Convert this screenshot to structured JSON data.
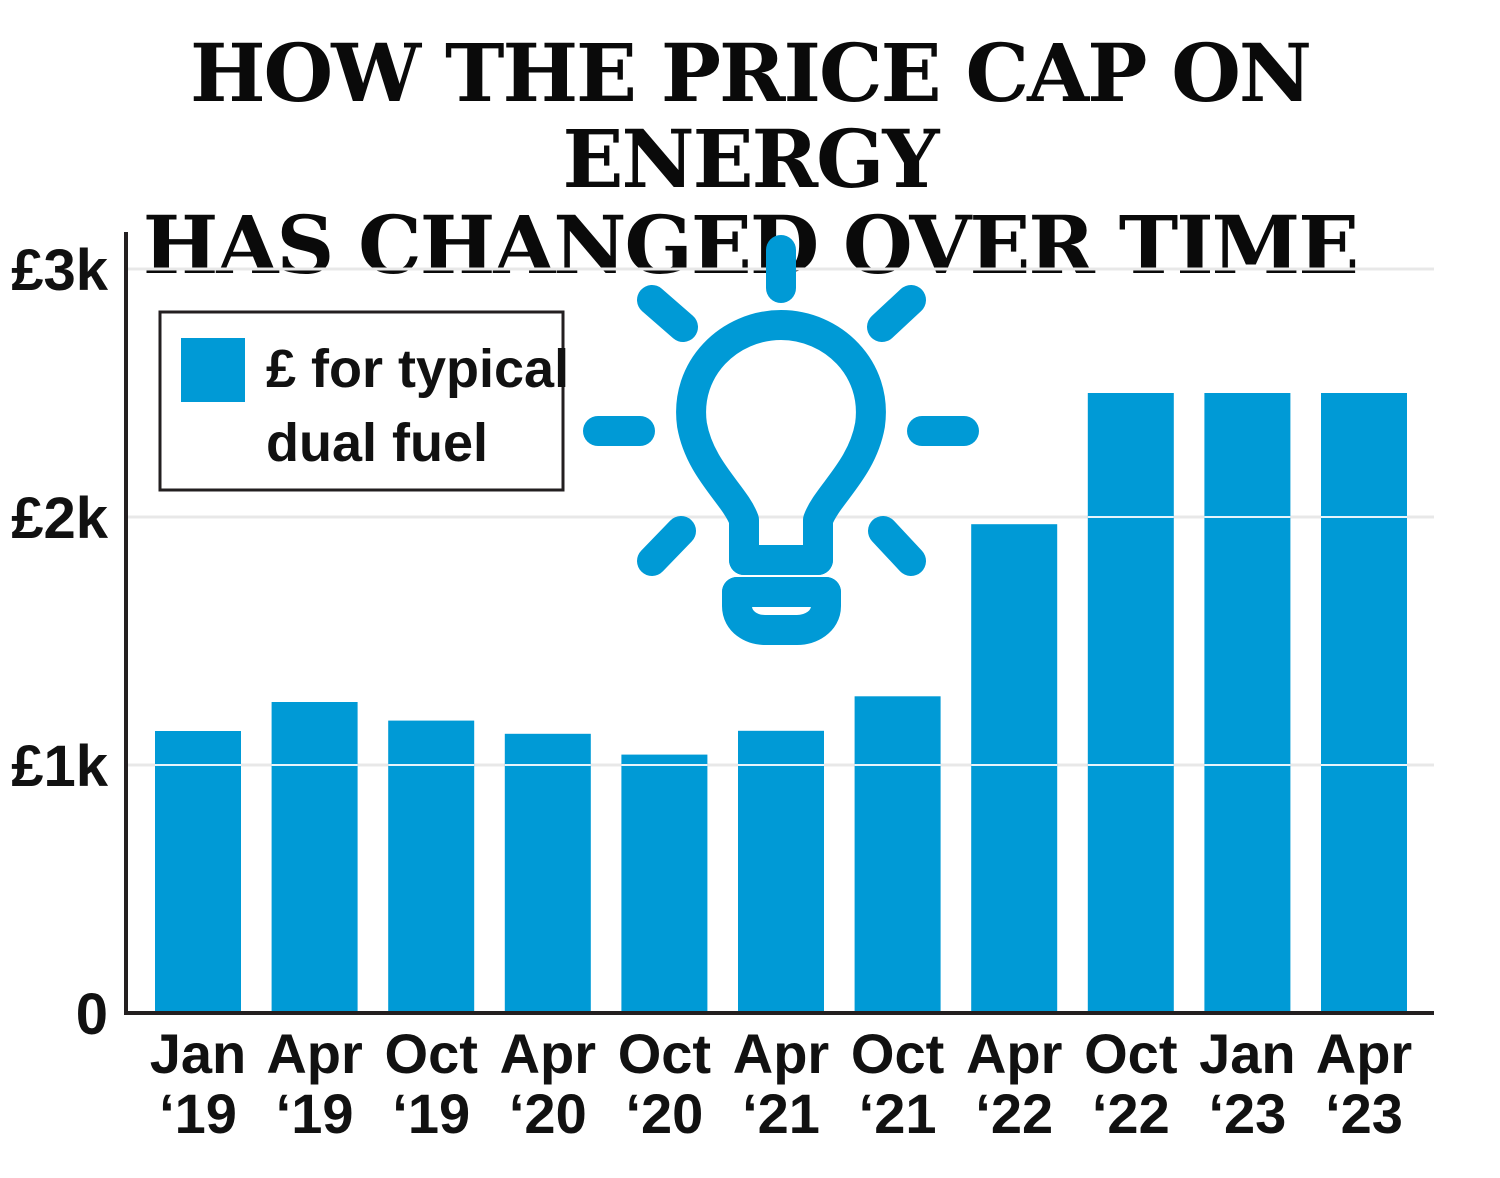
{
  "title_lines": [
    "HOW THE PRICE CAP ON ENERGY",
    "HAS CHANGED OVER TIME"
  ],
  "colors": {
    "bar": "#009ad6",
    "icon": "#009ad6",
    "axis": "#231f20",
    "grid": "#e8e8e8"
  },
  "legend": {
    "label_lines": [
      "£ for typical",
      "dual fuel"
    ]
  },
  "icon": "lightbulb-icon",
  "chart_data": {
    "type": "bar",
    "title": "HOW THE PRICE CAP ON ENERGY HAS CHANGED OVER TIME",
    "xlabel": "",
    "ylabel": "",
    "ylim": [
      0,
      3000
    ],
    "grid": true,
    "legend_position": "top-left",
    "categories": [
      [
        "Jan",
        "‘19"
      ],
      [
        "Apr",
        "‘19"
      ],
      [
        "Oct",
        "‘19"
      ],
      [
        "Apr",
        "‘20"
      ],
      [
        "Oct",
        "‘20"
      ],
      [
        "Apr",
        "‘21"
      ],
      [
        "Oct",
        "‘21"
      ],
      [
        "Apr",
        "‘22"
      ],
      [
        "Oct",
        "‘22"
      ],
      [
        "Jan",
        "‘23"
      ],
      [
        "Apr",
        "‘23"
      ]
    ],
    "series": [
      {
        "name": "£ for typical dual fuel",
        "values": [
          1137,
          1254,
          1179,
          1126,
          1042,
          1138,
          1277,
          1971,
          2500,
          2500,
          2500
        ]
      }
    ],
    "y_ticks": [
      {
        "value": 0,
        "label": "0"
      },
      {
        "value": 1000,
        "label": "£1k"
      },
      {
        "value": 2000,
        "label": "£2k"
      },
      {
        "value": 3000,
        "label": "£3k"
      }
    ]
  }
}
